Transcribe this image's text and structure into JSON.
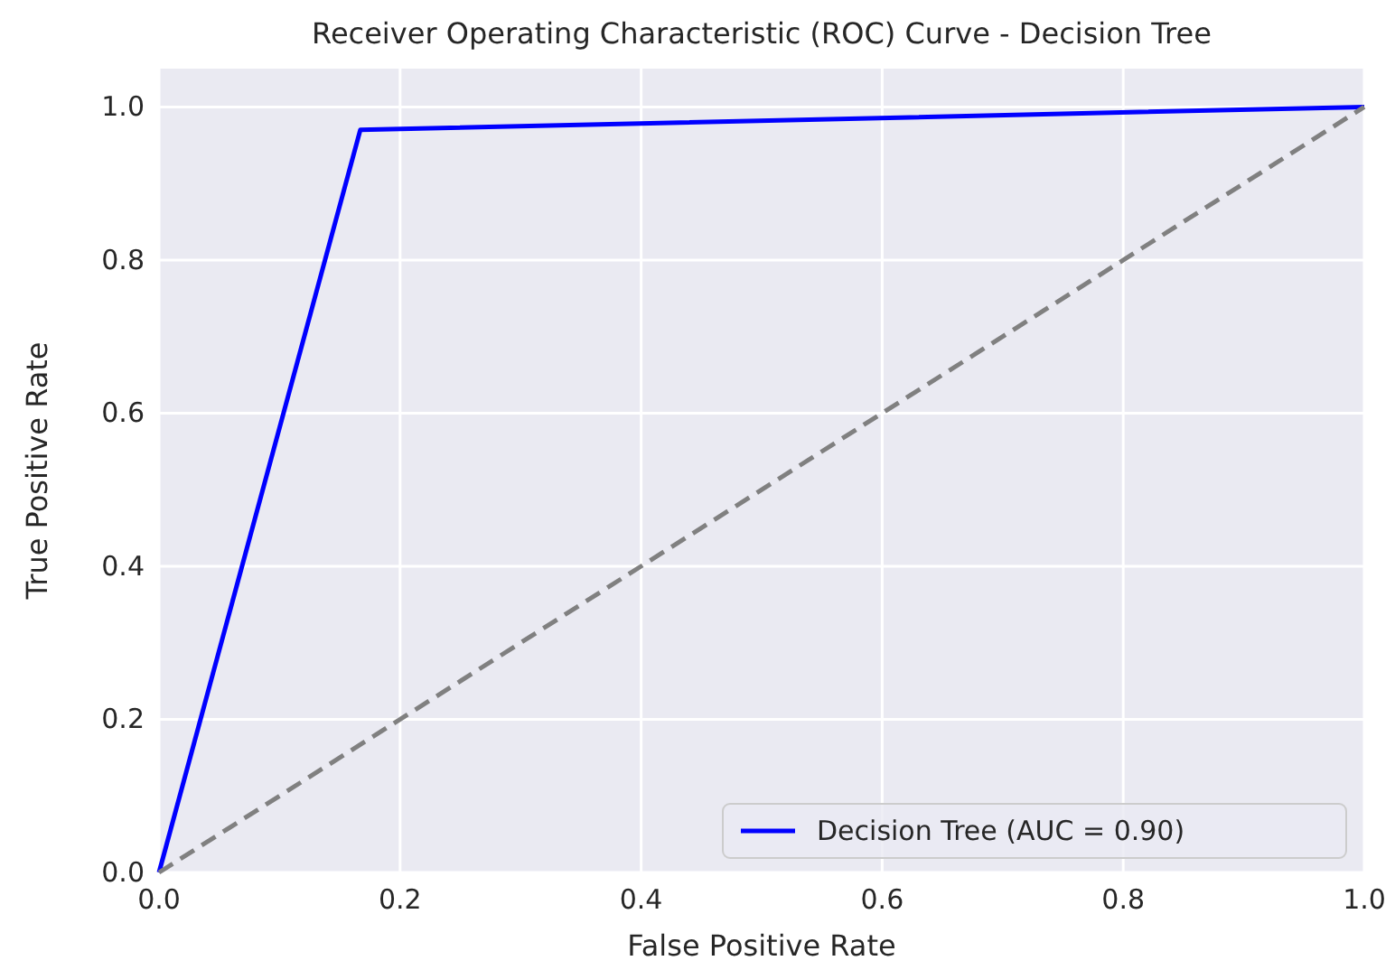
{
  "chart_data": {
    "type": "line",
    "title": "Receiver Operating Characteristic (ROC) Curve - Decision Tree",
    "xlabel": "False Positive Rate",
    "ylabel": "True Positive Rate",
    "series": [
      {
        "name": "Decision Tree (AUC = 0.90)",
        "color": "#0000ff",
        "x": [
          0,
          0.167,
          1
        ],
        "values": [
          0,
          0.97,
          1
        ],
        "line_style": "solid"
      },
      {
        "color": "#808080",
        "x": [
          0,
          1
        ],
        "values": [
          0,
          1
        ],
        "line_style": "dashed"
      }
    ],
    "xlim": [
      0,
      1
    ],
    "ylim": [
      0,
      1.05
    ],
    "xticks": [
      {
        "value": 0,
        "label": "0.0"
      },
      0.2,
      0.4,
      0.6,
      0.8,
      {
        "value": 1,
        "label": "1.0"
      }
    ],
    "yticks": [
      {
        "value": 0,
        "label": "0.0"
      },
      0.2,
      0.4,
      0.6,
      0.8,
      {
        "value": 1,
        "label": "1.0"
      }
    ],
    "grid": true,
    "legend": "bottom right",
    "marker": "none"
  }
}
